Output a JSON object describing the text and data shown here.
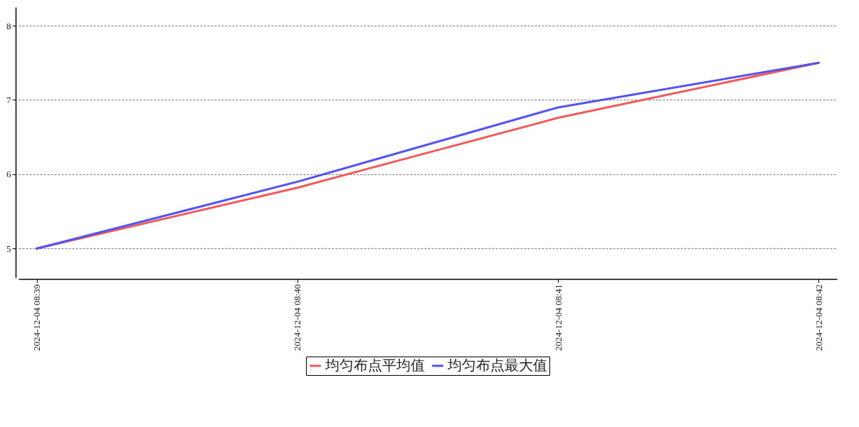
{
  "chart_data": {
    "type": "line",
    "categories": [
      "2024-12-04 08:39",
      "2024-12-04 08:40",
      "2024-12-04 08:41",
      "2024-12-04 08:42"
    ],
    "series": [
      {
        "name": "均匀布点平均值",
        "color": "#f05a5a",
        "values": [
          5,
          5.82,
          6.76,
          7.5
        ]
      },
      {
        "name": "均匀布点最大值",
        "color": "#5555ee",
        "values": [
          5,
          5.9,
          6.9,
          7.5
        ]
      }
    ],
    "ylim": [
      4.61,
      8.25
    ],
    "yticks": [
      5,
      6,
      7,
      8
    ],
    "grid": "y",
    "legend": "bottom",
    "marker": "none",
    "line_style": "solid"
  }
}
